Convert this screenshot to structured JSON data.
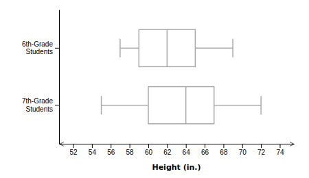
{
  "chart_data": {
    "type": "box",
    "orientation": "horizontal",
    "xlabel": "Height (in.)",
    "categories": [
      "6th-Grade\nStudents",
      "7th-Grade\nStudents"
    ],
    "values": [
      {
        "min": 57,
        "q1": 59,
        "median": 62,
        "q3": 65,
        "max": 69
      },
      {
        "min": 55,
        "q1": 60,
        "median": 64,
        "q3": 67,
        "max": 72
      }
    ],
    "color": "#aaaaaa",
    "xlim": [
      50.5,
      75.5
    ],
    "xticks": [
      52,
      54,
      56,
      58,
      60,
      62,
      64,
      66,
      68,
      70,
      72,
      74
    ],
    "grid": false
  }
}
